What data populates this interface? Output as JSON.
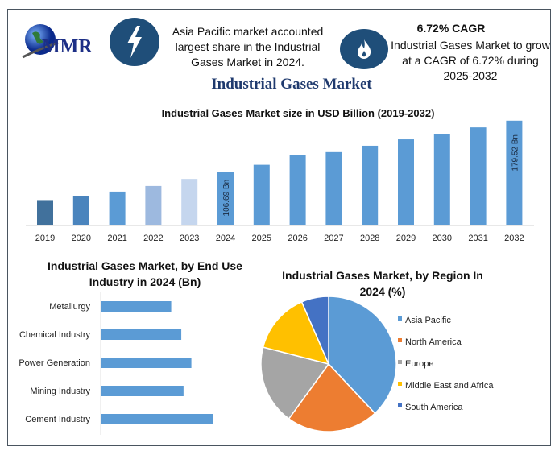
{
  "logo": {
    "text": "MMR"
  },
  "header": {
    "left_icon": "lightning-bolt-icon",
    "left_text": "Asia Pacific market accounted largest share in the Industrial Gases Market in 2024.",
    "right_icon": "flame-icon",
    "right_heading": "6.72% CAGR",
    "right_text": "Industrial Gases Market to grow at a CAGR of 6.72% during 2025-2032"
  },
  "title": "Industrial Gases Market",
  "chart_data": [
    {
      "type": "bar",
      "title": "Industrial Gases Market size in USD Billion (2019-2032)",
      "categories": [
        "2019",
        "2020",
        "2021",
        "2022",
        "2023",
        "2024",
        "2025",
        "2026",
        "2027",
        "2028",
        "2029",
        "2030",
        "2031",
        "2032"
      ],
      "values": [
        67,
        73,
        79,
        87,
        97,
        106.69,
        117,
        131,
        135,
        144,
        153,
        161,
        170,
        179.52
      ],
      "data_labels": {
        "2024": "106.69 Bn",
        "2032": "179.52 Bn"
      },
      "colors": [
        "#41719c",
        "#4a84bd",
        "#5b9bd5",
        "#9db9df",
        "#c5d6ee",
        "#5b9bd5",
        "#5b9bd5",
        "#5b9bd5",
        "#5b9bd5",
        "#5b9bd5",
        "#5b9bd5",
        "#5b9bd5",
        "#5b9bd5",
        "#5b9bd5"
      ],
      "ylim": [
        31,
        185
      ],
      "grid": false
    },
    {
      "type": "bar",
      "orientation": "horizontal",
      "title": "Industrial Gases Market, by End Use Industry in 2024 (Bn)",
      "categories": [
        "Metallurgy",
        "Chemical Industry",
        "Power Generation",
        "Mining Industry",
        "Cement Industry"
      ],
      "values": [
        0.63,
        0.72,
        0.81,
        0.74,
        1.0
      ],
      "color": "#5b9bd5"
    },
    {
      "type": "pie",
      "title": "Industrial Gases Market, by Region In 2024 (%)",
      "categories": [
        "Asia Pacific",
        "North America",
        "Europe",
        "Middle East and Africa",
        "South America"
      ],
      "values": [
        38,
        22,
        19,
        14.5,
        6.5
      ],
      "colors": [
        "#5b9bd5",
        "#ed7d31",
        "#a5a5a5",
        "#ffc000",
        "#4472c4"
      ],
      "legend": "right"
    }
  ]
}
